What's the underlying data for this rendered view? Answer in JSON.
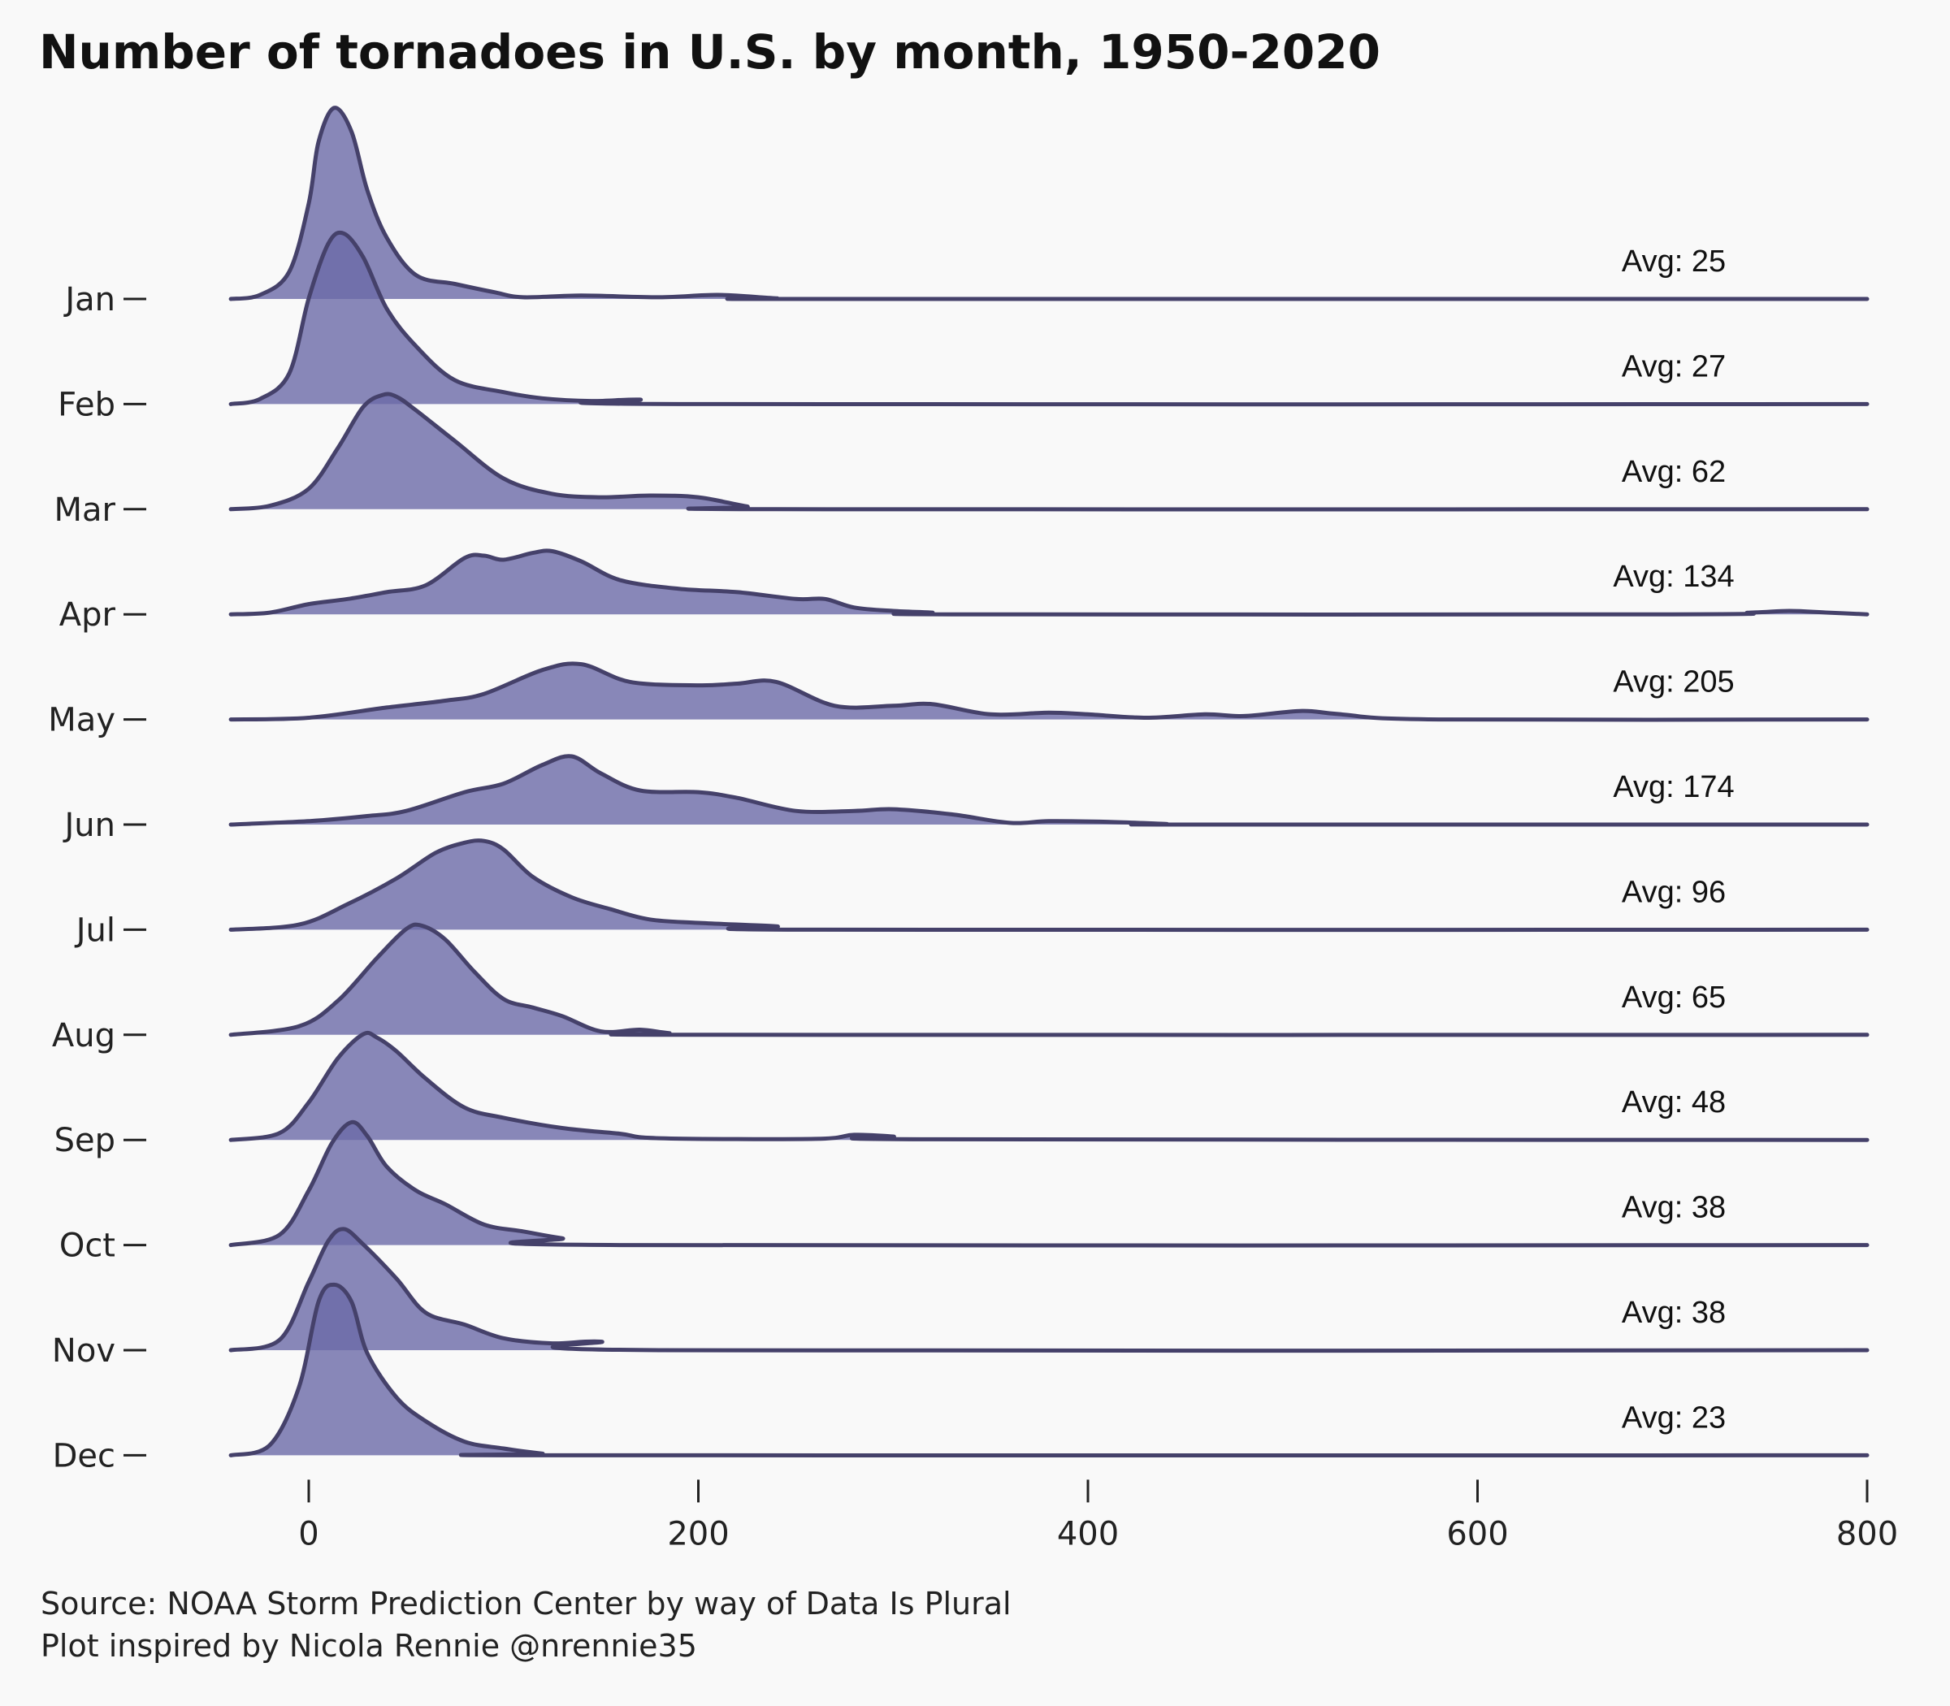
{
  "chart_data": {
    "type": "area",
    "subtype": "ridgeline",
    "title": "Number of tornadoes in U.S. by month, 1950-2020",
    "xlim": [
      -40,
      800
    ],
    "x_ticks": [
      0,
      200,
      400,
      600,
      800
    ],
    "x_tick_labels": [
      "0",
      "200",
      "400",
      "600",
      "800"
    ],
    "grid": false,
    "fill_color": "#6b6aa8",
    "line_color": "#45416a",
    "series": [
      {
        "name": "Jan",
        "avg_label": "Avg: 25",
        "x": [
          -40,
          -25,
          -10,
          0,
          5,
          13,
          22,
          30,
          40,
          55,
          75,
          95,
          110,
          140,
          180,
          210,
          240,
          260,
          800
        ],
        "y": [
          0,
          0.12,
          0.8,
          2.8,
          4.6,
          5.6,
          4.9,
          3.2,
          1.8,
          0.7,
          0.44,
          0.2,
          0.05,
          0.1,
          0.05,
          0.12,
          0.02,
          0,
          0
        ]
      },
      {
        "name": "Feb",
        "avg_label": "Avg: 27",
        "x": [
          -40,
          -25,
          -10,
          0,
          10,
          18,
          28,
          40,
          55,
          75,
          100,
          120,
          145,
          170,
          190,
          800
        ],
        "y": [
          0,
          0.15,
          0.9,
          3.1,
          4.7,
          5.0,
          4.3,
          2.8,
          1.7,
          0.7,
          0.35,
          0.17,
          0.09,
          0.13,
          0,
          0
        ]
      },
      {
        "name": "Mar",
        "avg_label": "Avg: 62",
        "x": [
          -40,
          -20,
          0,
          15,
          28,
          38,
          45,
          55,
          75,
          100,
          125,
          150,
          175,
          200,
          225,
          240,
          800
        ],
        "y": [
          0,
          0.1,
          0.6,
          1.8,
          3.0,
          3.35,
          3.3,
          2.9,
          2.0,
          0.9,
          0.45,
          0.35,
          0.4,
          0.35,
          0.08,
          0,
          0
        ]
      },
      {
        "name": "Apr",
        "avg_label": "Avg: 134",
        "x": [
          -40,
          -20,
          0,
          20,
          40,
          60,
          80,
          90,
          100,
          115,
          125,
          140,
          160,
          190,
          220,
          250,
          265,
          280,
          300,
          320,
          330,
          700,
          740,
          760,
          780,
          800
        ],
        "y": [
          0,
          0.05,
          0.3,
          0.45,
          0.65,
          0.85,
          1.65,
          1.72,
          1.6,
          1.8,
          1.85,
          1.55,
          1.0,
          0.75,
          0.65,
          0.45,
          0.45,
          0.2,
          0.1,
          0.05,
          0,
          0,
          0.05,
          0.1,
          0.05,
          0
        ]
      },
      {
        "name": "May",
        "avg_label": "Avg: 205",
        "x": [
          -40,
          0,
          40,
          70,
          90,
          120,
          140,
          165,
          200,
          220,
          240,
          270,
          300,
          320,
          350,
          380,
          400,
          430,
          460,
          480,
          510,
          530,
          580,
          800
        ],
        "y": [
          0,
          0.05,
          0.35,
          0.55,
          0.75,
          1.45,
          1.62,
          1.1,
          1.0,
          1.05,
          1.1,
          0.4,
          0.4,
          0.45,
          0.15,
          0.2,
          0.15,
          0.05,
          0.15,
          0.1,
          0.25,
          0.15,
          0,
          0
        ]
      },
      {
        "name": "Jun",
        "avg_label": "Avg: 174",
        "x": [
          -40,
          0,
          30,
          50,
          80,
          100,
          120,
          135,
          150,
          170,
          200,
          220,
          250,
          280,
          300,
          330,
          360,
          380,
          410,
          440,
          450,
          800
        ],
        "y": [
          0,
          0.1,
          0.25,
          0.4,
          0.95,
          1.2,
          1.75,
          2.0,
          1.5,
          1.0,
          0.95,
          0.78,
          0.4,
          0.4,
          0.45,
          0.3,
          0.05,
          0.1,
          0.08,
          0.02,
          0,
          0
        ]
      },
      {
        "name": "Jul",
        "avg_label": "Avg: 96",
        "x": [
          -40,
          -5,
          20,
          45,
          65,
          80,
          90,
          100,
          115,
          135,
          155,
          175,
          200,
          240,
          260,
          800
        ],
        "y": [
          0,
          0.15,
          0.75,
          1.5,
          2.25,
          2.55,
          2.6,
          2.35,
          1.55,
          0.95,
          0.6,
          0.3,
          0.2,
          0.1,
          0,
          0
        ]
      },
      {
        "name": "Aug",
        "avg_label": "Avg: 65",
        "x": [
          -40,
          -5,
          15,
          35,
          50,
          58,
          70,
          85,
          100,
          115,
          130,
          150,
          170,
          185,
          205,
          800
        ],
        "y": [
          0,
          0.25,
          1.0,
          2.25,
          3.1,
          3.2,
          2.8,
          1.85,
          1.05,
          0.8,
          0.55,
          0.1,
          0.15,
          0.05,
          0,
          0
        ]
      },
      {
        "name": "Sep",
        "avg_label": "Avg: 48",
        "x": [
          -40,
          -15,
          0,
          15,
          28,
          35,
          45,
          60,
          80,
          100,
          130,
          160,
          180,
          260,
          280,
          300,
          320,
          800
        ],
        "y": [
          0,
          0.2,
          1.1,
          2.4,
          3.1,
          3.0,
          2.6,
          1.8,
          0.95,
          0.65,
          0.35,
          0.18,
          0.05,
          0.03,
          0.15,
          0.1,
          0.02,
          0
        ]
      },
      {
        "name": "Oct",
        "avg_label": "Avg: 38",
        "x": [
          -40,
          -15,
          0,
          12,
          22,
          30,
          40,
          55,
          70,
          90,
          110,
          130,
          160,
          800
        ],
        "y": [
          0,
          0.3,
          1.6,
          3.0,
          3.6,
          3.2,
          2.3,
          1.6,
          1.2,
          0.6,
          0.4,
          0.2,
          0,
          0
        ]
      },
      {
        "name": "Nov",
        "avg_label": "Avg: 38",
        "x": [
          -40,
          -15,
          0,
          10,
          18,
          28,
          45,
          60,
          80,
          100,
          125,
          150,
          180,
          800
        ],
        "y": [
          0,
          0.3,
          2.0,
          3.2,
          3.55,
          3.1,
          2.1,
          1.1,
          0.75,
          0.35,
          0.2,
          0.25,
          0,
          0
        ]
      },
      {
        "name": "Dec",
        "avg_label": "Avg: 23",
        "x": [
          -40,
          -20,
          -5,
          5,
          13,
          22,
          30,
          45,
          60,
          80,
          100,
          120,
          130,
          800
        ],
        "y": [
          0,
          0.3,
          2.0,
          4.5,
          5.0,
          4.5,
          3.0,
          1.7,
          1.0,
          0.4,
          0.2,
          0.05,
          0,
          0
        ]
      }
    ]
  },
  "caption": {
    "line1": "Source: NOAA Storm Prediction Center by way of Data Is Plural",
    "line2": "Plot inspired by Nicola Rennie @nrennie35"
  }
}
